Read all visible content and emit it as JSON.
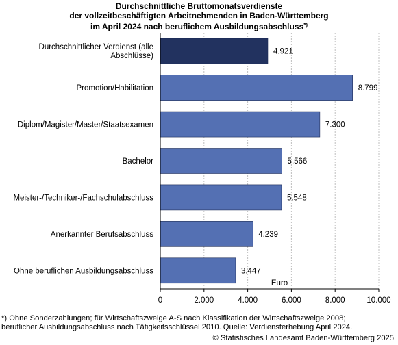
{
  "title_lines": [
    "Durchschnittliche Bruttomonatsverdienste",
    "der vollzeitbeschäftigten Arbeitnehmenden in Baden-Württemberg",
    "im April 2024 nach beruflichem Ausbildungsabschluss"
  ],
  "title_sup": "*)",
  "chart_data": {
    "type": "bar",
    "orientation": "horizontal",
    "categories": [
      [
        "Durchschnittlicher Verdienst (alle",
        "Abschlüsse)"
      ],
      [
        "Promotion/Habilitation"
      ],
      [
        "Diplom/Magister/Master/Staatsexamen"
      ],
      [
        "Bachelor"
      ],
      [
        "Meister-/Techniker-/Fachschulabschluss"
      ],
      [
        "Anerkannter Berufsabschluss"
      ],
      [
        "Ohne beruflichen Ausbildungsabschluss"
      ]
    ],
    "values": [
      4921,
      8799,
      7300,
      5566,
      5548,
      4239,
      3447
    ],
    "value_labels": [
      "4.921",
      "8.799",
      "7.300",
      "5.566",
      "5.548",
      "4.239",
      "3.447"
    ],
    "highlight_index": 0,
    "xlabel": "Euro",
    "xlim": [
      0,
      10000
    ],
    "xticks": [
      0,
      2000,
      4000,
      6000,
      8000,
      10000
    ],
    "xtick_labels": [
      "0",
      "2.000",
      "4.000",
      "6.000",
      "8.000",
      "10.000"
    ],
    "grid": "vertical, dashed",
    "colors": {
      "highlight": "#22325f",
      "bar": "#5470b3",
      "grid": "#bfbfbf",
      "axis": "#000000"
    }
  },
  "footnote_lines": [
    "*) Ohne Sonderzahlungen; für Wirtschaftszweige A-S nach Klassifikation der Wirtschaftszweige 2008;",
    "beruflicher Ausbildungsabschluss nach Tätigkeitsschlüssel 2010. Quelle: Verdiensterhebung April 2024."
  ],
  "copyright": "© Statistisches Landesamt Baden-Württemberg 2025"
}
